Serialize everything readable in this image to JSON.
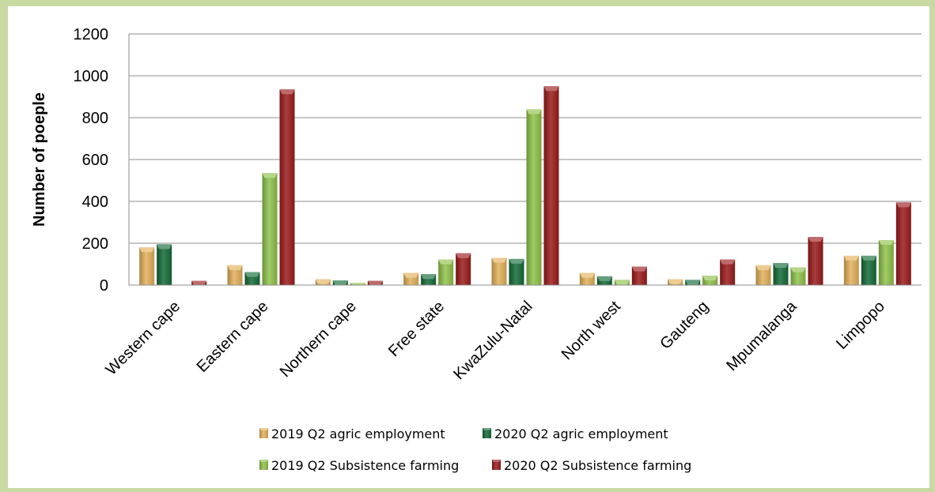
{
  "chart_data": {
    "type": "bar",
    "title": "",
    "xlabel": "",
    "ylabel": "Number of poeple",
    "ylim": [
      0,
      1200
    ],
    "yticks": [
      0,
      200,
      400,
      600,
      800,
      1000,
      1200
    ],
    "grid": true,
    "legend_position": "bottom",
    "categories": [
      "Western cape",
      "Eastern cape",
      "Northern cape",
      "Free state",
      "KwaZulu-Natal",
      "North west",
      "Gauteng",
      "Mpumalanga",
      "Limpopo"
    ],
    "series": [
      {
        "name": "2019 Q2 agric employment",
        "color": "#e3b15a",
        "values": [
          180,
          95,
          28,
          58,
          130,
          58,
          28,
          95,
          140
        ]
      },
      {
        "name": "2020 Q2 agric employment",
        "color": "#146b38",
        "values": [
          195,
          62,
          22,
          52,
          125,
          42,
          25,
          105,
          140
        ]
      },
      {
        "name": "2019 Q2 Subsistence farming",
        "color": "#8fc24a",
        "values": [
          0,
          535,
          10,
          122,
          840,
          25,
          45,
          85,
          215
        ]
      },
      {
        "name": "2020 Q2 Subsistence farming",
        "color": "#9b1b1b",
        "values": [
          20,
          935,
          20,
          152,
          950,
          88,
          122,
          230,
          395
        ]
      }
    ]
  }
}
